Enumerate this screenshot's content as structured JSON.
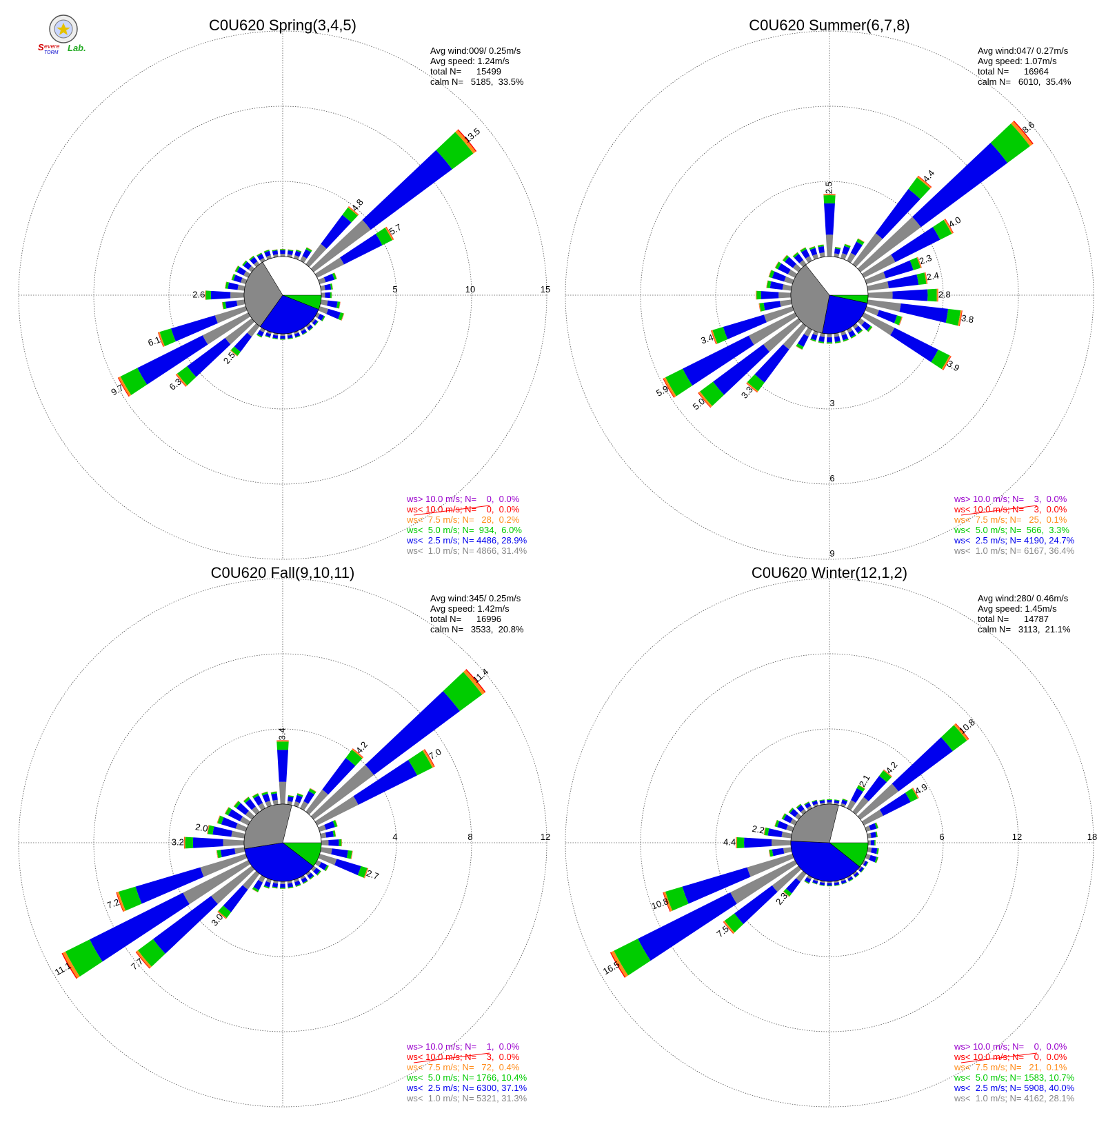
{
  "logo": {
    "text_line1": "Severe",
    "text_line2": "Storm",
    "text_line3": "Lab."
  },
  "colors": {
    "lt1": "#888888",
    "lt2_5": "#0000ee",
    "lt5": "#00cc00",
    "lt7_5": "#ff8c1a",
    "lt10": "#ff0000",
    "gt10": "#9900cc",
    "grid": "#555555"
  },
  "legend_labels": {
    "gt10": "ws> 10.0 m/s; N=",
    "lt10": "ws< 10.0 m/s; N=",
    "lt7_5": "ws<  7.5 m/s; N=",
    "lt5": "ws<  5.0 m/s; N=",
    "lt2_5": "ws<  2.5 m/s; N=",
    "lt1": "ws<  1.0 m/s; N="
  },
  "chart_data": [
    {
      "type": "wind-rose",
      "title": "C0U620 Spring(3,4,5)",
      "stats": [
        "Avg wind:009/ 0.25m/s",
        "Avg speed: 1.24m/s",
        "total N=      15499",
        "calm N=   5185,  33.5%"
      ],
      "ring_values": [
        5,
        10,
        15
      ],
      "ring_labels": [
        "5",
        "10",
        "15"
      ],
      "ring_label_axis": "east",
      "calm_pie_percent": {
        "lt1": 31.4,
        "lt2_5": 28.9,
        "lt5": 6.0
      },
      "legend_values": {
        "gt10": "   0,  0.0%",
        "lt10": "   0,  0.0%",
        "lt7_5": "  28,  0.2%",
        "lt5": " 934,  6.0%",
        "lt2_5": "4486, 28.9%",
        "lt1": "4866, 31.4%"
      },
      "spokes": [
        {
          "dir": 0,
          "total": 0.5
        },
        {
          "dir": 10,
          "total": 0.5
        },
        {
          "dir": 20,
          "total": 0.6
        },
        {
          "dir": 30,
          "total": 1.0
        },
        {
          "dir": 40,
          "total": 4.8,
          "label": "4.8"
        },
        {
          "dir": 50,
          "total": 13.5,
          "label": "13.5"
        },
        {
          "dir": 60,
          "total": 5.7,
          "label": "5.7"
        },
        {
          "dir": 70,
          "total": 1.2
        },
        {
          "dir": 80,
          "total": 0.8
        },
        {
          "dir": 90,
          "total": 0.7
        },
        {
          "dir": 100,
          "total": 1.3
        },
        {
          "dir": 110,
          "total": 1.7
        },
        {
          "dir": 120,
          "total": 0.6
        },
        {
          "dir": 130,
          "total": 0.4
        },
        {
          "dir": 140,
          "total": 0.4
        },
        {
          "dir": 150,
          "total": 0.4
        },
        {
          "dir": 160,
          "total": 0.4
        },
        {
          "dir": 170,
          "total": 0.4
        },
        {
          "dir": 180,
          "total": 0.4
        },
        {
          "dir": 190,
          "total": 0.4
        },
        {
          "dir": 200,
          "total": 0.4
        },
        {
          "dir": 210,
          "total": 0.6
        },
        {
          "dir": 220,
          "total": 2.5,
          "label": "2.5"
        },
        {
          "dir": 230,
          "total": 6.3,
          "label": "6.3"
        },
        {
          "dir": 240,
          "total": 9.7,
          "label": "9.7"
        },
        {
          "dir": 250,
          "total": 6.1,
          "label": "6.1"
        },
        {
          "dir": 260,
          "total": 1.5
        },
        {
          "dir": 270,
          "total": 2.6,
          "label": "2.6"
        },
        {
          "dir": 280,
          "total": 1.3
        },
        {
          "dir": 290,
          "total": 1.0
        },
        {
          "dir": 300,
          "total": 1.0
        },
        {
          "dir": 310,
          "total": 0.8
        },
        {
          "dir": 320,
          "total": 0.7
        },
        {
          "dir": 330,
          "total": 0.6
        },
        {
          "dir": 340,
          "total": 0.6
        },
        {
          "dir": 350,
          "total": 0.5
        }
      ]
    },
    {
      "type": "wind-rose",
      "title": "C0U620 Summer(6,7,8)",
      "stats": [
        "Avg wind:047/ 0.27m/s",
        "Avg speed: 1.07m/s",
        "total N=      16964",
        "calm N=   6010,  35.4%"
      ],
      "ring_values": [
        3,
        6,
        9
      ],
      "ring_labels": [
        "3",
        "6",
        "9"
      ],
      "ring_label_axis": "south",
      "calm_pie_percent": {
        "lt1": 36.4,
        "lt2_5": 24.7,
        "lt5": 3.3
      },
      "legend_values": {
        "gt10": "   3,  0.0%",
        "lt10": "   3,  0.0%",
        "lt7_5": "  25,  0.1%",
        "lt5": " 566,  3.3%",
        "lt2_5": "4190, 24.7%",
        "lt1": "6167, 36.4%"
      },
      "spokes": [
        {
          "dir": 0,
          "total": 2.5,
          "label": "2.5"
        },
        {
          "dir": 10,
          "total": 0.4
        },
        {
          "dir": 20,
          "total": 0.6
        },
        {
          "dir": 30,
          "total": 1.0
        },
        {
          "dir": 40,
          "total": 4.4,
          "label": "4.4"
        },
        {
          "dir": 50,
          "total": 8.6,
          "label": "8.6"
        },
        {
          "dir": 60,
          "total": 4.0,
          "label": "4.0"
        },
        {
          "dir": 70,
          "total": 2.3,
          "label": "2.3"
        },
        {
          "dir": 80,
          "total": 2.4,
          "label": "2.4"
        },
        {
          "dir": 90,
          "total": 2.8,
          "label": "2.8"
        },
        {
          "dir": 100,
          "total": 3.8,
          "label": "3.8"
        },
        {
          "dir": 110,
          "total": 1.5
        },
        {
          "dir": 120,
          "total": 3.9,
          "label": "3.9"
        },
        {
          "dir": 130,
          "total": 0.6
        },
        {
          "dir": 140,
          "total": 0.4
        },
        {
          "dir": 150,
          "total": 0.4
        },
        {
          "dir": 160,
          "total": 0.4
        },
        {
          "dir": 170,
          "total": 0.4
        },
        {
          "dir": 180,
          "total": 0.4
        },
        {
          "dir": 190,
          "total": 0.4
        },
        {
          "dir": 200,
          "total": 0.4
        },
        {
          "dir": 210,
          "total": 0.9
        },
        {
          "dir": 220,
          "total": 3.3,
          "label": "3.3"
        },
        {
          "dir": 230,
          "total": 5.0,
          "label": "5.0"
        },
        {
          "dir": 240,
          "total": 5.9,
          "label": "5.9"
        },
        {
          "dir": 250,
          "total": 3.4,
          "label": "3.4"
        },
        {
          "dir": 260,
          "total": 1.3
        },
        {
          "dir": 270,
          "total": 1.4
        },
        {
          "dir": 280,
          "total": 1.0
        },
        {
          "dir": 290,
          "total": 1.0
        },
        {
          "dir": 300,
          "total": 0.9
        },
        {
          "dir": 310,
          "total": 0.8
        },
        {
          "dir": 320,
          "total": 0.6
        },
        {
          "dir": 330,
          "total": 0.6
        },
        {
          "dir": 340,
          "total": 0.5
        },
        {
          "dir": 350,
          "total": 0.5
        }
      ]
    },
    {
      "type": "wind-rose",
      "title": "C0U620 Fall(9,10,11)",
      "stats": [
        "Avg wind:345/ 0.25m/s",
        "Avg speed: 1.42m/s",
        "total N=      16996",
        "calm N=   3533,  20.8%"
      ],
      "ring_values": [
        4,
        8,
        12
      ],
      "ring_labels": [
        "4",
        "8",
        "12"
      ],
      "ring_label_axis": "east",
      "calm_pie_percent": {
        "lt1": 31.3,
        "lt2_5": 37.1,
        "lt5": 10.4
      },
      "legend_values": {
        "gt10": "   1,  0.0%",
        "lt10": "   3,  0.0%",
        "lt7_5": "  72,  0.4%",
        "lt5": "1766, 10.4%",
        "lt2_5": "6300, 37.1%",
        "lt1": "5321, 31.3%"
      },
      "spokes": [
        {
          "dir": 0,
          "total": 3.4,
          "label": "3.4"
        },
        {
          "dir": 10,
          "total": 0.5
        },
        {
          "dir": 20,
          "total": 0.7
        },
        {
          "dir": 30,
          "total": 1.2
        },
        {
          "dir": 40,
          "total": 4.2,
          "label": "4.2"
        },
        {
          "dir": 50,
          "total": 11.4,
          "label": "11.4"
        },
        {
          "dir": 60,
          "total": 7.0,
          "label": "7.0"
        },
        {
          "dir": 70,
          "total": 1.0
        },
        {
          "dir": 80,
          "total": 0.8
        },
        {
          "dir": 90,
          "total": 1.1
        },
        {
          "dir": 100,
          "total": 1.7
        },
        {
          "dir": 110,
          "total": 2.7,
          "label": "2.7"
        },
        {
          "dir": 120,
          "total": 0.7
        },
        {
          "dir": 130,
          "total": 0.5
        },
        {
          "dir": 140,
          "total": 0.4
        },
        {
          "dir": 150,
          "total": 0.4
        },
        {
          "dir": 160,
          "total": 0.4
        },
        {
          "dir": 170,
          "total": 0.4
        },
        {
          "dir": 180,
          "total": 0.4
        },
        {
          "dir": 190,
          "total": 0.4
        },
        {
          "dir": 200,
          "total": 0.5
        },
        {
          "dir": 210,
          "total": 0.9
        },
        {
          "dir": 220,
          "total": 3.0,
          "label": "3.0"
        },
        {
          "dir": 230,
          "total": 7.7,
          "label": "7.7"
        },
        {
          "dir": 240,
          "total": 11.1,
          "label": "11.1"
        },
        {
          "dir": 250,
          "total": 7.2,
          "label": "7.2"
        },
        {
          "dir": 260,
          "total": 1.5
        },
        {
          "dir": 270,
          "total": 3.2,
          "label": "3.2"
        },
        {
          "dir": 280,
          "total": 2.0,
          "label": "2.0"
        },
        {
          "dir": 290,
          "total": 1.6
        },
        {
          "dir": 300,
          "total": 1.4
        },
        {
          "dir": 310,
          "total": 1.2
        },
        {
          "dir": 320,
          "total": 1.0
        },
        {
          "dir": 330,
          "total": 0.9
        },
        {
          "dir": 340,
          "total": 0.8
        },
        {
          "dir": 350,
          "total": 0.7
        }
      ]
    },
    {
      "type": "wind-rose",
      "title": "C0U620 Winter(12,1,2)",
      "stats": [
        "Avg wind:280/ 0.46m/s",
        "Avg speed: 1.45m/s",
        "total N=      14787",
        "calm N=   3113,  21.1%"
      ],
      "ring_values": [
        6,
        12,
        18
      ],
      "ring_labels": [
        "6",
        "12",
        "18"
      ],
      "ring_label_axis": "east",
      "calm_pie_percent": {
        "lt1": 28.1,
        "lt2_5": 40.0,
        "lt5": 10.7
      },
      "legend_values": {
        "gt10": "   0,  0.0%",
        "lt10": "   0,  0.0%",
        "lt7_5": "  21,  0.1%",
        "lt5": "1583, 10.7%",
        "lt2_5": "5908, 40.0%",
        "lt1": "4162, 28.1%"
      },
      "spokes": [
        {
          "dir": 0,
          "total": 0.4
        },
        {
          "dir": 10,
          "total": 0.4
        },
        {
          "dir": 20,
          "total": 0.6
        },
        {
          "dir": 30,
          "total": 2.1,
          "label": "2.1"
        },
        {
          "dir": 40,
          "total": 4.2,
          "label": "4.2"
        },
        {
          "dir": 50,
          "total": 10.8,
          "label": "10.8"
        },
        {
          "dir": 60,
          "total": 4.9,
          "label": "4.9"
        },
        {
          "dir": 70,
          "total": 1.0
        },
        {
          "dir": 80,
          "total": 0.8
        },
        {
          "dir": 90,
          "total": 0.6
        },
        {
          "dir": 100,
          "total": 0.9
        },
        {
          "dir": 110,
          "total": 1.0
        },
        {
          "dir": 120,
          "total": 0.4
        },
        {
          "dir": 130,
          "total": 0.4
        },
        {
          "dir": 140,
          "total": 0.4
        },
        {
          "dir": 150,
          "total": 0.4
        },
        {
          "dir": 160,
          "total": 0.4
        },
        {
          "dir": 170,
          "total": 0.4
        },
        {
          "dir": 180,
          "total": 0.4
        },
        {
          "dir": 190,
          "total": 0.4
        },
        {
          "dir": 200,
          "total": 0.4
        },
        {
          "dir": 210,
          "total": 0.6
        },
        {
          "dir": 220,
          "total": 2.3,
          "label": "2.3"
        },
        {
          "dir": 230,
          "total": 7.5,
          "label": "7.5"
        },
        {
          "dir": 240,
          "total": 16.5,
          "label": "16.5"
        },
        {
          "dir": 250,
          "total": 10.8,
          "label": "10.8"
        },
        {
          "dir": 260,
          "total": 1.8
        },
        {
          "dir": 270,
          "total": 4.4,
          "label": "4.4"
        },
        {
          "dir": 280,
          "total": 2.2,
          "label": "2.2"
        },
        {
          "dir": 290,
          "total": 1.5
        },
        {
          "dir": 300,
          "total": 1.2
        },
        {
          "dir": 310,
          "total": 1.0
        },
        {
          "dir": 320,
          "total": 0.8
        },
        {
          "dir": 330,
          "total": 0.6
        },
        {
          "dir": 340,
          "total": 0.5
        },
        {
          "dir": 350,
          "total": 0.4
        }
      ]
    }
  ]
}
